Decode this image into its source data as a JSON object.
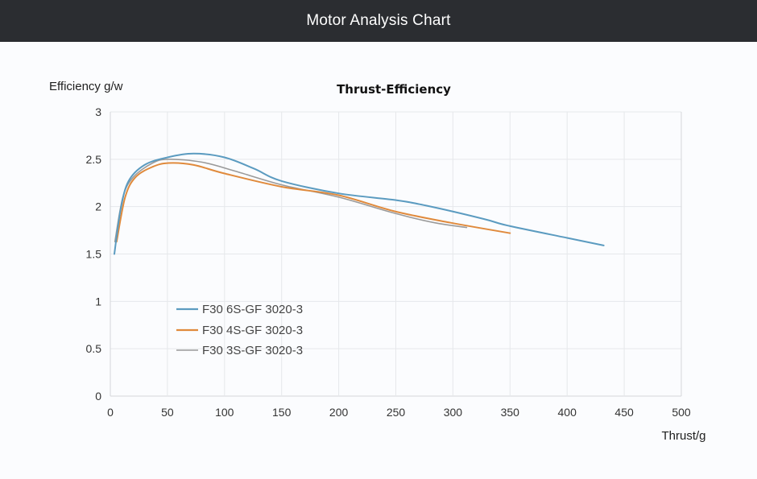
{
  "header": {
    "title": "Motor Analysis Chart"
  },
  "chart_data": {
    "type": "line",
    "title": "Thrust-Efficiency",
    "xlabel": "Thrust/g",
    "ylabel": "Efficiency g/w",
    "xlim": [
      0,
      500
    ],
    "ylim": [
      0,
      3
    ],
    "xticks": [
      "0",
      "50",
      "100",
      "150",
      "200",
      "250",
      "300",
      "350",
      "400",
      "450",
      "500"
    ],
    "yticks": [
      "0",
      "0.5",
      "1",
      "1.5",
      "2",
      "2.5",
      "3"
    ],
    "grid": true,
    "legend_position": "bottom-left",
    "series": [
      {
        "name": "F30 6S-GF 3020-3",
        "color": "#5b9bc0",
        "x": [
          3.5,
          9,
          16,
          30,
          50,
          73,
          100,
          126,
          150,
          200,
          249,
          277,
          327,
          348,
          400,
          432
        ],
        "y": [
          1.5,
          1.97,
          2.27,
          2.44,
          2.52,
          2.56,
          2.52,
          2.4,
          2.27,
          2.14,
          2.07,
          2.01,
          1.87,
          1.8,
          1.67,
          1.59
        ]
      },
      {
        "name": "F30 4S-GF 3020-3",
        "color": "#e08a3c",
        "x": [
          5.5,
          13,
          22,
          37,
          51,
          73,
          100,
          150,
          200,
          249,
          298,
          350
        ],
        "y": [
          1.63,
          2.1,
          2.31,
          2.42,
          2.46,
          2.44,
          2.35,
          2.21,
          2.12,
          1.95,
          1.83,
          1.72
        ]
      },
      {
        "name": "F30 3S-GF 3020-3",
        "color": "#9a9a9a",
        "x": [
          4,
          11,
          20,
          37,
          51,
          80,
          108,
          150,
          200,
          249,
          284,
          312
        ],
        "y": [
          1.63,
          2.1,
          2.31,
          2.46,
          2.5,
          2.47,
          2.38,
          2.23,
          2.1,
          1.93,
          1.83,
          1.78
        ]
      }
    ]
  }
}
